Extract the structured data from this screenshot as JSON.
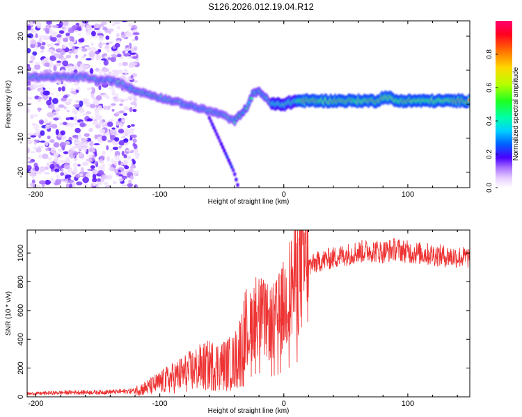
{
  "title": "S126.2026.012.19.04.R12",
  "chart_data": [
    {
      "type": "heatmap",
      "name": "spectrogram",
      "xlabel": "Height of straight line (km)",
      "ylabel": "Frequency (Hz)",
      "xlim": [
        -207,
        150
      ],
      "ylim": [
        -24.5,
        24.5
      ],
      "xticks": [
        -200,
        -100,
        0,
        100
      ],
      "xtick_labels": [
        "-200",
        "-100",
        "0",
        "100"
      ],
      "yticks": [
        -20,
        -10,
        0,
        10,
        20
      ],
      "ytick_labels": [
        "-20",
        "-10",
        "0",
        "10",
        "20"
      ],
      "ridge": {
        "x": [
          -205,
          -190,
          -180,
          -170,
          -160,
          -150,
          -140,
          -130,
          -120,
          -110,
          -100,
          -90,
          -80,
          -70,
          -60,
          -50,
          -40,
          -35,
          -30,
          -25,
          -20,
          -15,
          -10,
          -5,
          0,
          10,
          20,
          40,
          60,
          75,
          80,
          85,
          90,
          100,
          110,
          120,
          140,
          150
        ],
        "y": [
          8,
          8,
          8,
          8,
          8,
          7,
          7,
          6,
          4,
          3,
          2,
          1,
          0,
          -1,
          -2,
          -3,
          -5,
          -3,
          -1,
          3,
          4,
          2,
          0,
          0,
          0,
          1,
          1,
          1,
          1,
          1,
          2,
          2,
          1,
          1,
          1,
          1,
          1,
          1
        ]
      },
      "branch": {
        "x": [
          -60,
          -55,
          -50,
          -45,
          -40,
          -37
        ],
        "y": [
          -4,
          -8,
          -12,
          -16,
          -20,
          -24
        ]
      },
      "colorbar": {
        "label": "Normalized spectral amplitude",
        "min": 0.0,
        "max": 1.0,
        "ticks": [
          0.0,
          0.2,
          0.4,
          0.6,
          0.8
        ],
        "tick_labels": [
          "0.0",
          "0.2",
          "0.4",
          "0.6",
          "0.8"
        ]
      }
    },
    {
      "type": "line",
      "name": "snr",
      "xlabel": "Height of straight line (km)",
      "ylabel": "SNR (10 * v/v)",
      "xlim": [
        -207,
        150
      ],
      "ylim": [
        0,
        1160
      ],
      "xticks": [
        -200,
        -100,
        0,
        100
      ],
      "xtick_labels": [
        "-200",
        "-100",
        "0",
        "100"
      ],
      "yticks": [
        0,
        200,
        400,
        600,
        800,
        1000
      ],
      "ytick_labels": [
        "0",
        "200",
        "400",
        "600",
        "800",
        "1000"
      ],
      "color": "#ee3333",
      "series": [
        {
          "name": "SNR",
          "x": [
            -207,
            -190,
            -170,
            -150,
            -130,
            -120,
            -110,
            -100,
            -90,
            -80,
            -70,
            -60,
            -50,
            -40,
            -35,
            -30,
            -25,
            -22,
            -20,
            -18,
            -15,
            -12,
            -10,
            -5,
            0,
            5,
            10,
            15,
            20,
            30,
            40,
            50,
            60,
            70,
            80,
            90,
            95,
            100,
            110,
            120,
            130,
            140,
            150
          ],
          "values": [
            20,
            25,
            30,
            30,
            35,
            40,
            60,
            90,
            120,
            150,
            180,
            200,
            200,
            220,
            300,
            400,
            500,
            550,
            560,
            520,
            500,
            480,
            480,
            520,
            600,
            700,
            800,
            860,
            900,
            940,
            960,
            980,
            1000,
            1010,
            1000,
            1020,
            1010,
            1000,
            990,
            980,
            970,
            965,
            960
          ]
        }
      ]
    }
  ]
}
